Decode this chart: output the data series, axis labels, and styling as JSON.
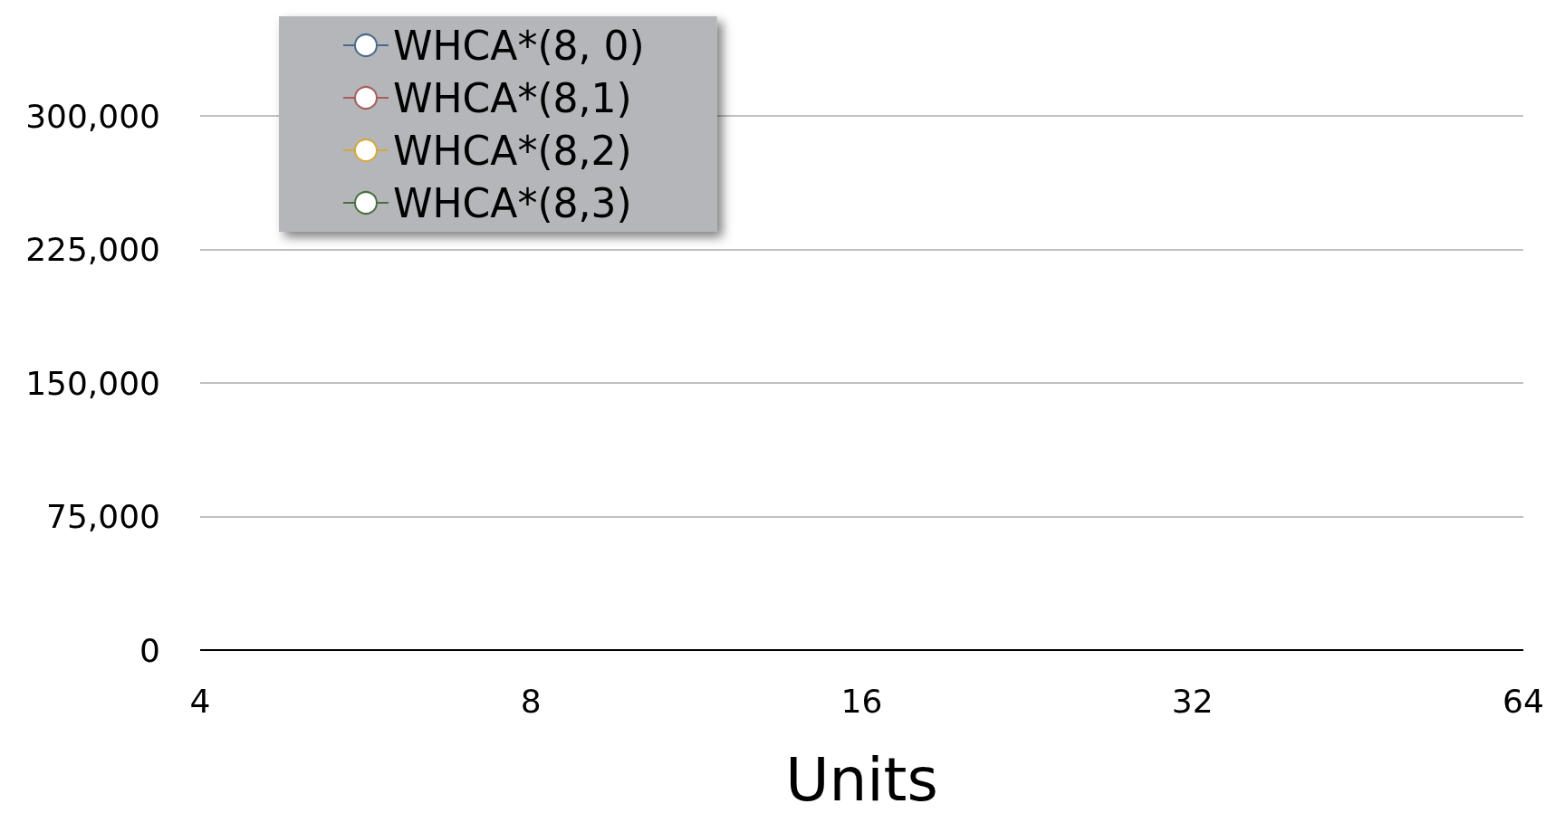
{
  "chart_data": {
    "type": "line",
    "xlabel": "Units",
    "categories": [
      "4",
      "8",
      "16",
      "32",
      "64"
    ],
    "ylim": [
      0,
      300000
    ],
    "yticks": [
      0,
      {
        "value": 75000,
        "label": "75,000"
      },
      {
        "value": 150000,
        "label": "150,000"
      },
      {
        "value": 225000,
        "label": "225,000"
      },
      {
        "value": 300000,
        "label": "300,000"
      }
    ],
    "grid": "y",
    "legend": "top left",
    "marker": "circle",
    "series": [
      {
        "name": "WHCA*(8, 0)",
        "color": "#4a6a8c",
        "values": [
          null,
          null,
          null,
          null,
          null
        ]
      },
      {
        "name": "WHCA*(8,1)",
        "color": "#a85c5c",
        "values": [
          null,
          null,
          null,
          null,
          null
        ]
      },
      {
        "name": "WHCA*(8,2)",
        "color": "#d4a83c",
        "values": [
          null,
          null,
          null,
          null,
          null
        ]
      },
      {
        "name": "WHCA*(8,3)",
        "color": "#4a7040",
        "values": [
          null,
          null,
          null,
          null,
          null
        ]
      }
    ]
  }
}
